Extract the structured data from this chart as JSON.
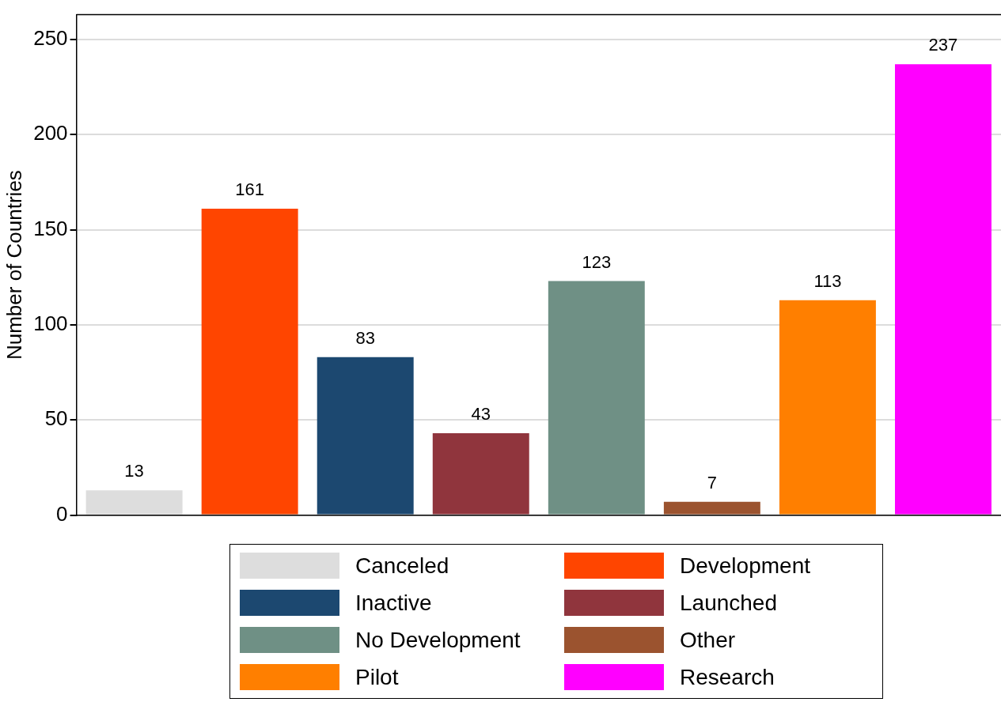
{
  "chart_data": {
    "type": "bar",
    "ylabel": "Number of Countries",
    "categories": [
      null,
      null,
      null,
      null,
      null,
      null,
      null,
      null
    ],
    "series": [
      {
        "name": "Canceled",
        "color": "#dddddd",
        "values": [
          13,
          null,
          null,
          null,
          null,
          null,
          null,
          null
        ]
      },
      {
        "name": "Development",
        "color": "#ff4500",
        "values": [
          null,
          161,
          null,
          null,
          null,
          null,
          null,
          null
        ]
      },
      {
        "name": "Inactive",
        "color": "#1c4870",
        "values": [
          null,
          null,
          83,
          null,
          null,
          null,
          null,
          null
        ]
      },
      {
        "name": "Launched",
        "color": "#90353d",
        "values": [
          null,
          null,
          null,
          43,
          null,
          null,
          null,
          null
        ]
      },
      {
        "name": "No Development",
        "color": "#6f9085",
        "values": [
          null,
          null,
          null,
          null,
          123,
          null,
          null,
          null
        ]
      },
      {
        "name": "Other",
        "color": "#9b532f",
        "values": [
          null,
          null,
          null,
          null,
          null,
          7,
          null,
          null
        ]
      },
      {
        "name": "Pilot",
        "color": "#ff7f00",
        "values": [
          null,
          null,
          null,
          null,
          null,
          null,
          113,
          null
        ]
      },
      {
        "name": "Research",
        "color": "#ff00ff",
        "values": [
          null,
          null,
          null,
          null,
          null,
          null,
          null,
          237
        ]
      }
    ],
    "ylim": [
      0,
      263
    ],
    "yticks": [
      0,
      50,
      100,
      150,
      200,
      250
    ],
    "grid": "y",
    "legend": "bottom",
    "data_labels": true
  }
}
